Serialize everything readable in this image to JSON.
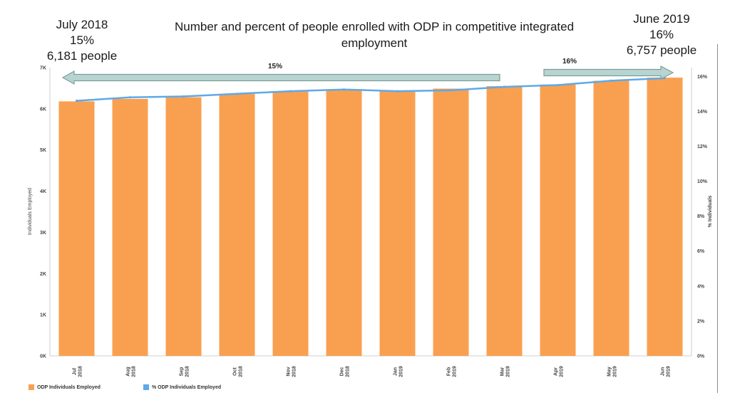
{
  "callouts": {
    "left": {
      "month": "July 2018",
      "percent": "15%",
      "people": "6,181 people"
    },
    "right": {
      "month": "June 2019",
      "percent": "16%",
      "people": "6,757 people"
    }
  },
  "arrows": {
    "left_label": "15%",
    "right_label": "16%"
  },
  "colors": {
    "bar": "#F9A050",
    "line": "#5DA9E9",
    "arrow_fill": "#B8D4D0",
    "arrow_stroke": "#7A9E9A"
  },
  "chart_data": {
    "type": "bar",
    "title": "Number and percent of people enrolled with ODP in competitive integrated employment",
    "xlabel": "",
    "ylabel": "Individuals Employed",
    "y2label": "% Individuals",
    "ylim": [
      0,
      7000
    ],
    "y2lim": [
      0,
      16.5
    ],
    "categories": [
      [
        "Jul",
        "2018"
      ],
      [
        "Aug",
        "2018"
      ],
      [
        "Sep",
        "2018"
      ],
      [
        "Oct",
        "2018"
      ],
      [
        "Nov",
        "2018"
      ],
      [
        "Dec",
        "2018"
      ],
      [
        "Jan",
        "2019"
      ],
      [
        "Feb",
        "2019"
      ],
      [
        "Mar",
        "2019"
      ],
      [
        "Apr",
        "2019"
      ],
      [
        "May",
        "2019"
      ],
      [
        "Jun",
        "2019"
      ]
    ],
    "yticks": [
      {
        "label": "0K",
        "value": 0
      },
      {
        "label": "1K",
        "value": 1000
      },
      {
        "label": "2K",
        "value": 2000
      },
      {
        "label": "3K",
        "value": 3000
      },
      {
        "label": "4K",
        "value": 4000
      },
      {
        "label": "5K",
        "value": 5000
      },
      {
        "label": "6K",
        "value": 6000
      },
      {
        "label": "7K",
        "value": 7000
      }
    ],
    "y2ticks": [
      {
        "label": "0%",
        "value": 0
      },
      {
        "label": "2%",
        "value": 2
      },
      {
        "label": "4%",
        "value": 4
      },
      {
        "label": "6%",
        "value": 6
      },
      {
        "label": "8%",
        "value": 8
      },
      {
        "label": "10%",
        "value": 10
      },
      {
        "label": "12%",
        "value": 12
      },
      {
        "label": "14%",
        "value": 14
      },
      {
        "label": "16%",
        "value": 16
      }
    ],
    "series": [
      {
        "name": "ODP Individuals Employed",
        "type": "bar",
        "values": [
          6181,
          6240,
          6280,
          6360,
          6420,
          6470,
          6440,
          6490,
          6550,
          6590,
          6680,
          6757
        ]
      },
      {
        "name": "% ODP Individuals Employed",
        "type": "line",
        "axis": "right",
        "values": [
          14.6,
          14.8,
          14.85,
          15.0,
          15.15,
          15.25,
          15.15,
          15.2,
          15.4,
          15.5,
          15.75,
          15.9
        ]
      }
    ],
    "legend": "bottom-left",
    "grid": false
  }
}
